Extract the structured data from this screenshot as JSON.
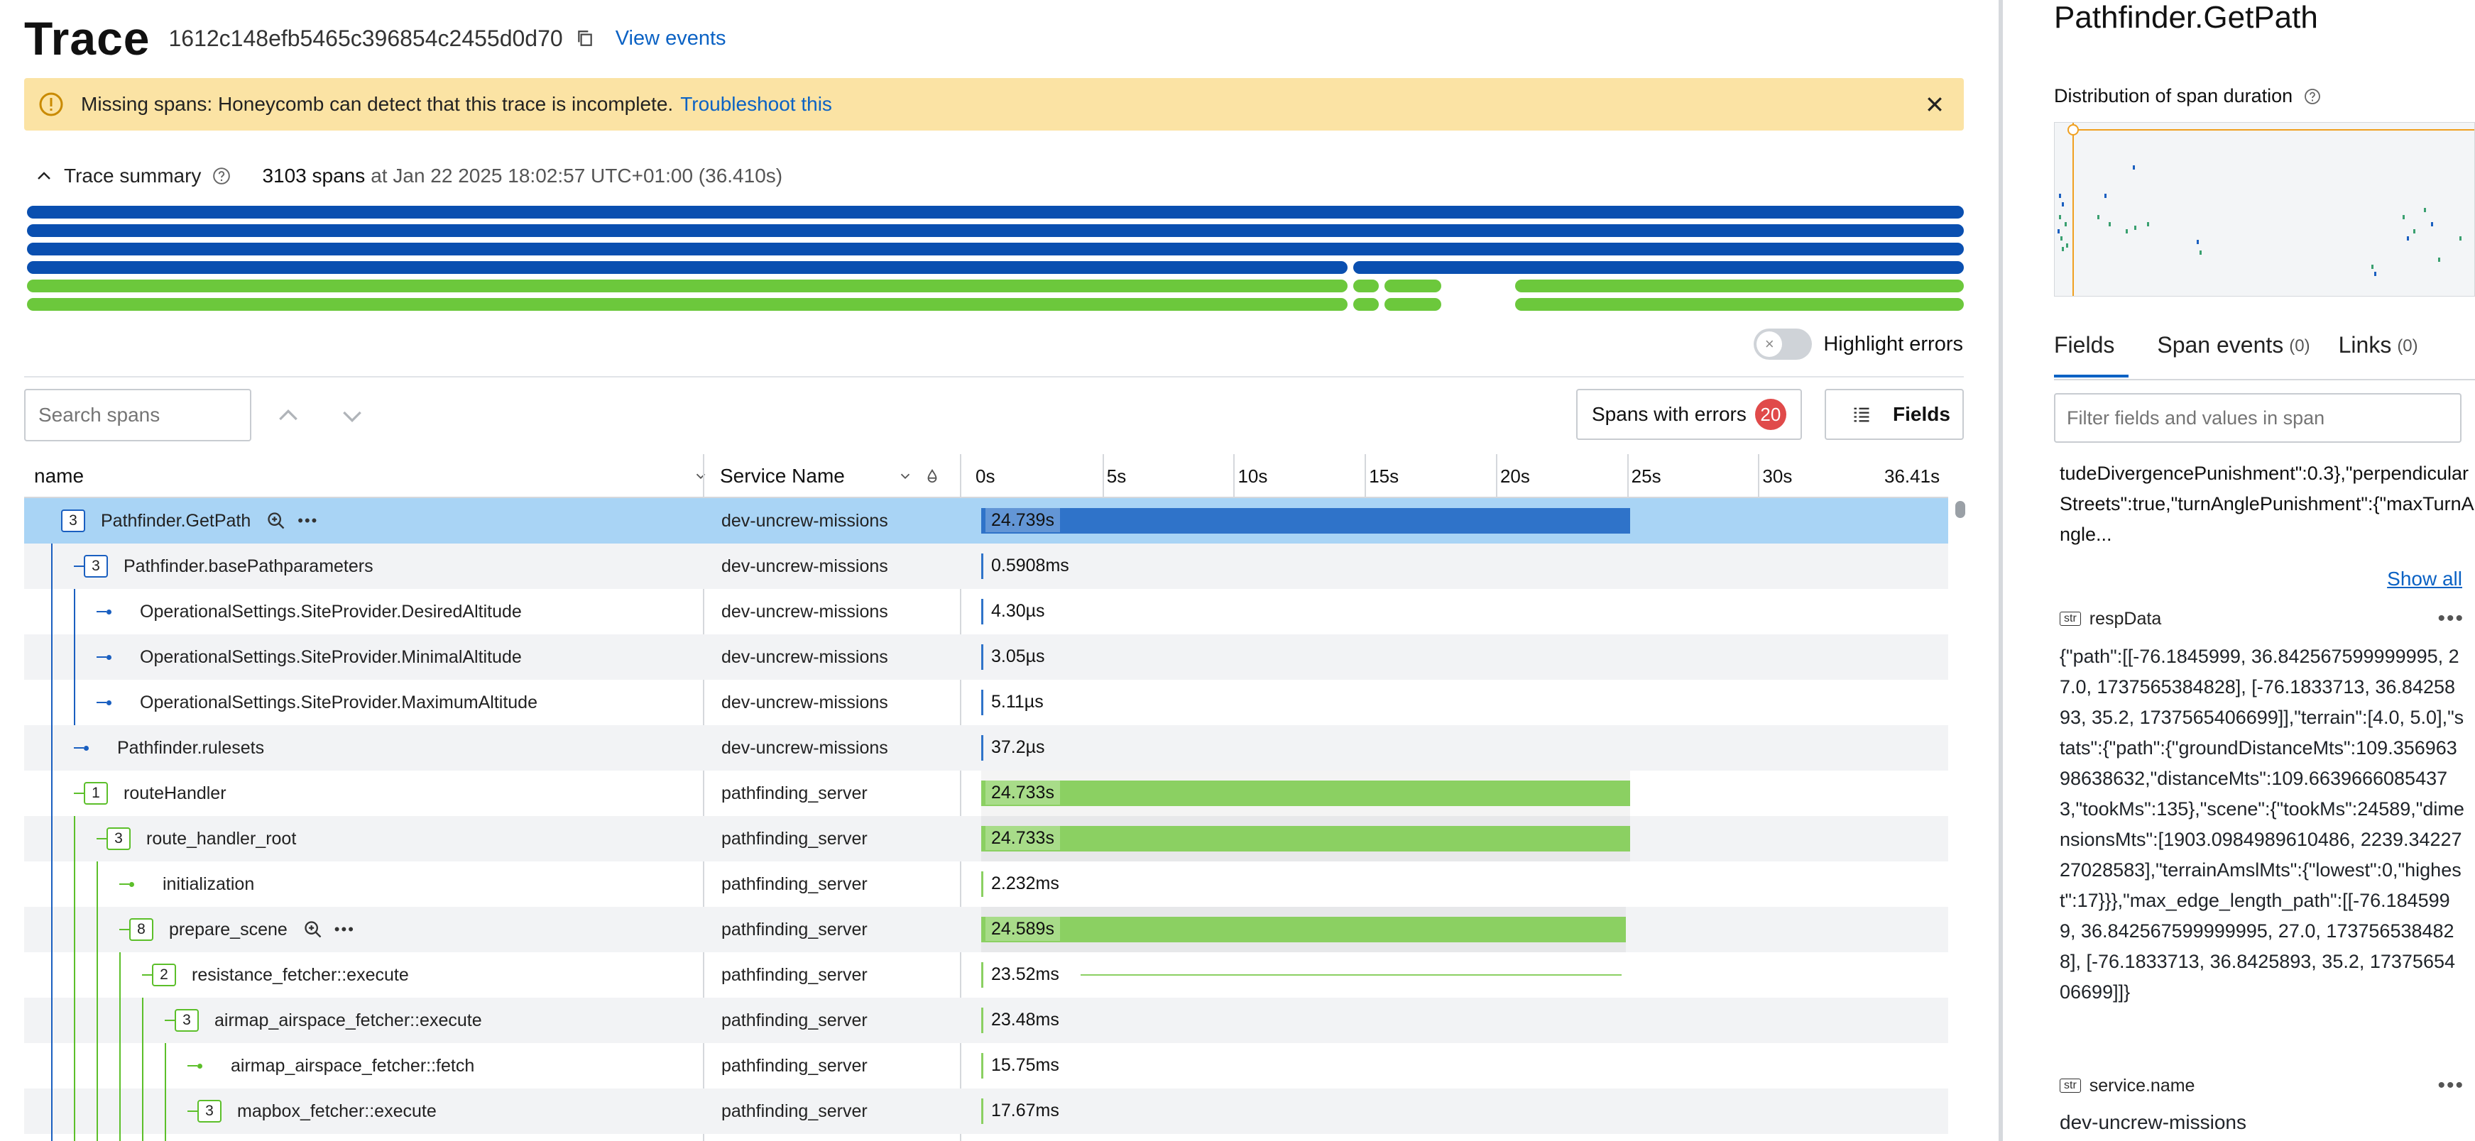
{
  "header": {
    "title": "Trace",
    "trace_id": "1612c148efb5465c396854c2455d0d70",
    "view_events": "View events"
  },
  "banner": {
    "text": "Missing spans: Honeycomb can detect that this trace is incomplete.",
    "link": "Troubleshoot this"
  },
  "summary": {
    "label": "Trace summary",
    "count": "3103 spans",
    "rest": "at Jan 22 2025 18:02:57 UTC+01:00 (36.410s)"
  },
  "highlight_errors": "Highlight errors",
  "search": {
    "placeholder": "Search spans"
  },
  "errors_button": {
    "label": "Spans with errors",
    "count": "20"
  },
  "fields_button": "Fields",
  "table": {
    "col_name": "name",
    "col_service": "Service Name",
    "ticks": [
      "0s",
      "5s",
      "10s",
      "15s",
      "20s",
      "25s",
      "30s",
      "36.41s"
    ],
    "total_seconds": 36.41,
    "rows": [
      {
        "badge": "3",
        "name": "Pathfinder.GetPath",
        "service": "dev-uncrew-missions",
        "duration": "24.739s",
        "start": 0,
        "end": 24.739,
        "color": "blue",
        "depth": 0,
        "selected": true,
        "icons": true
      },
      {
        "badge": "3",
        "name": "Pathfinder.basePathparameters",
        "service": "dev-uncrew-missions",
        "duration": "0.5908ms",
        "start": 0,
        "end": 0,
        "color": "blue",
        "depth": 1
      },
      {
        "badge": "",
        "name": "OperationalSettings.SiteProvider.DesiredAltitude",
        "service": "dev-uncrew-missions",
        "duration": "4.30µs",
        "start": 0,
        "end": 0,
        "color": "blue",
        "depth": 2
      },
      {
        "badge": "",
        "name": "OperationalSettings.SiteProvider.MinimalAltitude",
        "service": "dev-uncrew-missions",
        "duration": "3.05µs",
        "start": 0,
        "end": 0,
        "color": "blue",
        "depth": 2
      },
      {
        "badge": "",
        "name": "OperationalSettings.SiteProvider.MaximumAltitude",
        "service": "dev-uncrew-missions",
        "duration": "5.11µs",
        "start": 0,
        "end": 0,
        "color": "blue",
        "depth": 2
      },
      {
        "badge": "",
        "name": "Pathfinder.rulesets",
        "service": "dev-uncrew-missions",
        "duration": "37.2µs",
        "start": 0,
        "end": 0,
        "color": "blue",
        "depth": 1
      },
      {
        "badge": "1",
        "name": "routeHandler",
        "service": "pathfinding_server",
        "duration": "24.733s",
        "start": 0,
        "end": 24.733,
        "color": "green",
        "depth": 1
      },
      {
        "badge": "3",
        "name": "route_handler_root",
        "service": "pathfinding_server",
        "duration": "24.733s",
        "start": 0,
        "end": 24.733,
        "color": "green",
        "depth": 2
      },
      {
        "badge": "",
        "name": "initialization",
        "service": "pathfinding_server",
        "duration": "2.232ms",
        "start": 0,
        "end": 0,
        "color": "green",
        "depth": 3
      },
      {
        "badge": "8",
        "name": "prepare_scene",
        "service": "pathfinding_server",
        "duration": "24.589s",
        "start": 0,
        "end": 24.589,
        "color": "green",
        "depth": 3,
        "icons": true
      },
      {
        "badge": "2",
        "name": "resistance_fetcher::execute",
        "service": "pathfinding_server",
        "duration": "23.52ms",
        "start": 0,
        "end": 0,
        "color": "green",
        "depth": 4,
        "thin_to": 24.4
      },
      {
        "badge": "3",
        "name": "airmap_airspace_fetcher::execute",
        "service": "pathfinding_server",
        "duration": "23.48ms",
        "start": 0,
        "end": 0,
        "color": "green",
        "depth": 5
      },
      {
        "badge": "",
        "name": "airmap_airspace_fetcher::fetch",
        "service": "pathfinding_server",
        "duration": "15.75ms",
        "start": 0,
        "end": 0,
        "color": "green",
        "depth": 6
      },
      {
        "badge": "3",
        "name": "mapbox_fetcher::execute",
        "service": "pathfinding_server",
        "duration": "17.67ms",
        "start": 0,
        "end": 0,
        "color": "green",
        "depth": 6
      },
      {
        "badge": "",
        "name": "",
        "service": "",
        "duration": "",
        "start": 0,
        "end": 0,
        "color": "green",
        "depth": 6
      }
    ]
  },
  "right": {
    "span_title": "Pathfinder.GetPath",
    "dist_title": "Distribution of span duration",
    "tabs": [
      {
        "label": "Fields",
        "count": ""
      },
      {
        "label": "Span events",
        "count": "(0)"
      },
      {
        "label": "Links",
        "count": "(0)"
      }
    ],
    "filter_placeholder": "Filter fields and values in span",
    "truncated_field_text": "tudeDivergencePunishment\":0.3},\"perpendicularStreets\":true,\"turnAnglePunishment\":{\"maxTurnAngle...",
    "show_all": "Show all",
    "fields": [
      {
        "name": "respData",
        "type": "str",
        "value": "{\"path\":[[-76.1845999, 36.842567599999995, 27.0, 1737565384828], [-76.1833713, 36.8425893, 35.2, 1737565406699]],\"terrain\":[4.0, 5.0],\"stats\":{\"path\":{\"groundDistanceMts\":109.35696398638632,\"distanceMts\":109.66396660854373,\"tookMs\":135},\"scene\":{\"tookMs\":24589,\"dimensionsMts\":[1903.0984989610486, 2239.3422727028583],\"terrainAmslMts\":{\"lowest\":0,\"highest\":17}}},\"max_edge_length_path\":[[-76.1845999, 36.842567599999995, 27.0, 1737565384828], [-76.1833713, 36.8425893, 35.2, 1737565406699]]}"
      },
      {
        "name": "service.name",
        "type": "str",
        "value": "dev-uncrew-missions"
      }
    ]
  },
  "colors": {
    "accent": "#0b62c4",
    "blue_bar": "#2f73c9",
    "green_bar": "#8bd062",
    "banner": "#fbe3a4",
    "error_badge": "#e04a4a",
    "selected_row": "#a9d4f5"
  }
}
